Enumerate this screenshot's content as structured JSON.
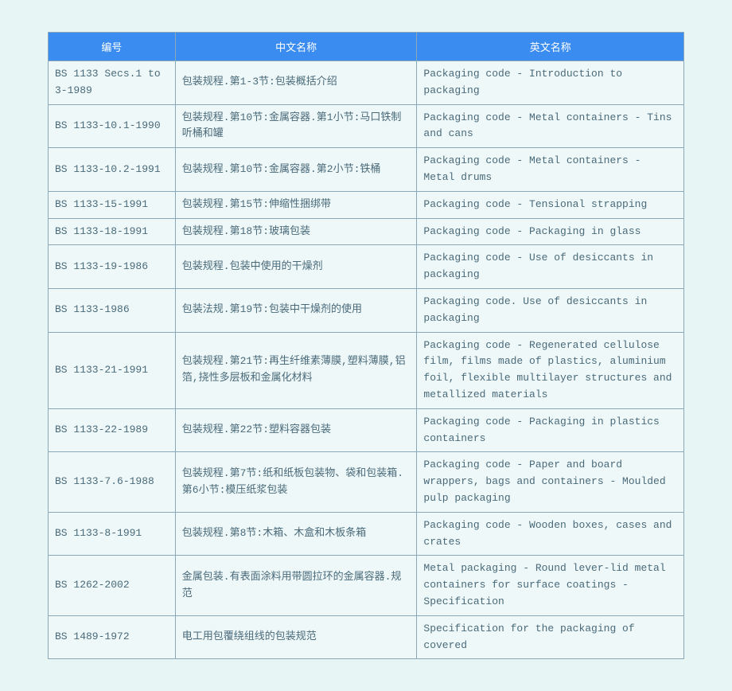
{
  "table": {
    "header_bg": "#3a8cf0",
    "header_fg": "#ffffff",
    "cell_bg": "#eef8f8",
    "cell_fg": "#4a6a7a",
    "border_color": "#8aa8b8",
    "fontsize": 13,
    "columns": [
      {
        "key": "id",
        "label": "编号",
        "width": "20%"
      },
      {
        "key": "cn",
        "label": "中文名称",
        "width": "38%"
      },
      {
        "key": "en",
        "label": "英文名称",
        "width": "42%"
      }
    ],
    "rows": [
      {
        "id": "BS 1133 Secs.1 to 3-1989",
        "cn": "包装规程.第1-3节:包装概括介绍",
        "en": "Packaging code - Introduction to packaging"
      },
      {
        "id": "BS 1133-10.1-1990",
        "cn": "包装规程.第10节:金属容器.第1小节:马口铁制听桶和罐",
        "en": "Packaging code - Metal containers - Tins and cans"
      },
      {
        "id": "BS 1133-10.2-1991",
        "cn": "包装规程.第10节:金属容器.第2小节:铁桶",
        "en": "Packaging code - Metal containers - Metal drums"
      },
      {
        "id": "BS 1133-15-1991",
        "cn": "包装规程.第15节:伸缩性捆绑带",
        "en": "Packaging code - Tensional strapping"
      },
      {
        "id": "BS 1133-18-1991",
        "cn": "包装规程.第18节:玻璃包装",
        "en": "Packaging code - Packaging in glass"
      },
      {
        "id": "BS 1133-19-1986",
        "cn": "包装规程.包装中使用的干燥剂",
        "en": "Packaging code - Use of desiccants in packaging"
      },
      {
        "id": "BS 1133-1986",
        "cn": "包装法规.第19节:包装中干燥剂的使用",
        "en": "Packaging code. Use of desiccants in packaging"
      },
      {
        "id": "BS 1133-21-1991",
        "cn": "包装规程.第21节:再生纤维素薄膜,塑料薄膜,铝箔,挠性多层板和金属化材料",
        "en": "Packaging code - Regenerated cellulose film, films made of plastics, aluminium foil, flexible multilayer structures and metallized materials"
      },
      {
        "id": "BS 1133-22-1989",
        "cn": "包装规程.第22节:塑料容器包装",
        "en": "Packaging code - Packaging in plastics containers"
      },
      {
        "id": "BS 1133-7.6-1988",
        "cn": "包装规程.第7节:纸和纸板包装物、袋和包装箱.第6小节:模压纸浆包装",
        "en": "Packaging code - Paper and board wrappers, bags and containers - Moulded pulp packaging"
      },
      {
        "id": "BS 1133-8-1991",
        "cn": "包装规程.第8节:木箱、木盒和木板条箱",
        "en": "Packaging code - Wooden boxes, cases and crates"
      },
      {
        "id": "BS 1262-2002",
        "cn": "金属包装.有表面涂料用带圆拉环的金属容器.规范",
        "en": "Metal packaging - Round lever-lid metal containers for surface coatings - Specification"
      },
      {
        "id": "BS 1489-1972",
        "cn": "电工用包覆绕组线的包装规范",
        "en": "Specification for the packaging of covered"
      }
    ]
  }
}
